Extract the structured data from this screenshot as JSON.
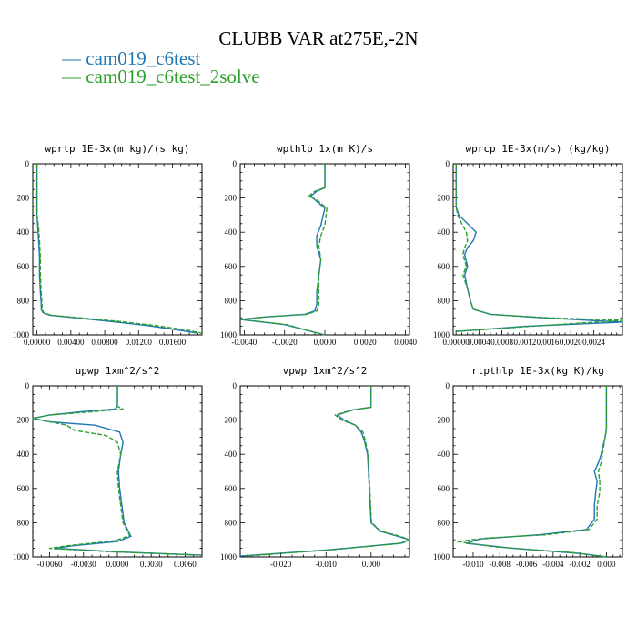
{
  "figure": {
    "title": "CLUBB VAR at275E,-2N",
    "legend": [
      {
        "label": "cam019_c6test",
        "color": "#1f77b4"
      },
      {
        "label": "cam019_c6test_2solve",
        "color": "#2ca02c"
      }
    ]
  },
  "chart_data": [
    {
      "type": "line",
      "title": "wprtp  1E-3x(m kg)/(s kg)",
      "xlim": [
        -0.0005,
        0.0195
      ],
      "ylim": [
        1000,
        0
      ],
      "xticks": [
        0,
        0.004,
        0.008,
        0.012,
        0.016
      ],
      "xtick_labels": [
        "0.00000",
        "0.00400",
        "0.00800",
        "0.01200",
        "0.01600"
      ],
      "yticks": [
        0,
        200,
        400,
        600,
        800,
        1000
      ],
      "series": [
        {
          "name": "cam019_c6test",
          "color": "#1f77b4",
          "dash": "solid",
          "x": [
            0,
            0,
            0,
            0.0001,
            0.0002,
            0.0003,
            0.0003,
            0.0004,
            0.0005,
            0.0005,
            0.0007,
            0.0015,
            0.0045,
            0.0085,
            0.013,
            0.0165,
            0.019
          ],
          "y": [
            0,
            100,
            300,
            380,
            450,
            550,
            650,
            750,
            820,
            850,
            870,
            885,
            900,
            920,
            945,
            970,
            990
          ]
        },
        {
          "name": "cam019_c6test_2solve",
          "color": "#2ca02c",
          "dash": "dashed",
          "x": [
            0,
            0,
            0,
            0.0002,
            0.0003,
            0.0004,
            0.0004,
            0.0005,
            0.0006,
            0.0006,
            0.0008,
            0.0017,
            0.005,
            0.0095,
            0.014,
            0.0175,
            0.0195
          ],
          "y": [
            0,
            100,
            300,
            380,
            450,
            550,
            650,
            750,
            820,
            850,
            870,
            885,
            900,
            920,
            945,
            970,
            990
          ]
        }
      ]
    },
    {
      "type": "line",
      "title": "wpthlp  1x(m K)/s",
      "xlim": [
        -0.0042,
        0.0042
      ],
      "ylim": [
        1000,
        0
      ],
      "xticks": [
        -0.004,
        -0.002,
        0,
        0.002,
        0.004
      ],
      "xtick_labels": [
        "-0.0040",
        "-0.0020",
        "0.0000",
        "0.0020",
        "0.0040"
      ],
      "yticks": [
        0,
        200,
        400,
        600,
        800,
        1000
      ],
      "series": [
        {
          "name": "cam019_c6test",
          "color": "#1f77b4",
          "dash": "solid",
          "x": [
            0,
            0,
            -0.0004,
            -0.0007,
            -0.0005,
            0,
            -0.0002,
            -0.0004,
            -0.0004,
            -0.0002,
            -0.0003,
            -0.0004,
            -0.0004,
            -0.0005,
            -0.001,
            -0.003,
            -0.0042,
            -0.002,
            0
          ],
          "y": [
            0,
            140,
            160,
            190,
            210,
            260,
            360,
            420,
            480,
            560,
            650,
            750,
            820,
            860,
            880,
            895,
            910,
            940,
            1000
          ]
        },
        {
          "name": "cam019_c6test_2solve",
          "color": "#2ca02c",
          "dash": "dashed",
          "x": [
            0,
            0,
            -0.0005,
            -0.0008,
            -0.0004,
            0.0001,
            0,
            -0.0002,
            -0.0003,
            -0.0002,
            -0.0003,
            -0.0003,
            -0.0003,
            -0.0004,
            -0.0009,
            -0.0029,
            -0.0041,
            -0.0019,
            0
          ],
          "y": [
            0,
            140,
            160,
            190,
            210,
            260,
            360,
            420,
            480,
            560,
            650,
            750,
            820,
            860,
            880,
            895,
            910,
            940,
            1000
          ]
        }
      ]
    },
    {
      "type": "line",
      "title": "wprcp  1E-3x(m/s) (kg/kg)",
      "xlim": [
        -5e-05,
        0.0029
      ],
      "ylim": [
        1000,
        0
      ],
      "xticks": [
        0,
        0.0004,
        0.0008,
        0.0012,
        0.0016,
        0.002,
        0.0024
      ],
      "xtick_labels": [
        "0.00000",
        "0.0004",
        "0.0008",
        "0.0012",
        "0.0016",
        "0.0020",
        "0.0024"
      ],
      "yticks": [
        0,
        200,
        400,
        600,
        800,
        1000
      ],
      "series": [
        {
          "name": "cam019_c6test",
          "color": "#1f77b4",
          "dash": "solid",
          "x": [
            0,
            0,
            5e-05,
            0.0002,
            0.00035,
            0.0003,
            0.0002,
            0.00015,
            0.0002,
            0.00015,
            0.0002,
            0.00025,
            0.0003,
            0.0006,
            0.0015,
            0.0029,
            0.0012,
            0
          ],
          "y": [
            0,
            250,
            300,
            350,
            400,
            450,
            490,
            530,
            600,
            650,
            730,
            800,
            850,
            880,
            900,
            925,
            950,
            980
          ]
        },
        {
          "name": "cam019_c6test_2solve",
          "color": "#2ca02c",
          "dash": "dashed",
          "x": [
            0,
            0,
            3e-05,
            0.0001,
            0.00018,
            0.0002,
            0.00015,
            0.00012,
            0.00018,
            0.00012,
            0.0002,
            0.00025,
            0.0003,
            0.0006,
            0.0016,
            0.0029,
            0.0013,
            0
          ],
          "y": [
            0,
            250,
            300,
            350,
            400,
            450,
            490,
            530,
            600,
            650,
            730,
            800,
            850,
            880,
            900,
            915,
            950,
            980
          ]
        }
      ]
    },
    {
      "type": "line",
      "title": "upwp  1xm^2/s^2",
      "xlim": [
        -0.0075,
        0.0075
      ],
      "ylim": [
        1000,
        0
      ],
      "xticks": [
        -0.006,
        -0.003,
        0,
        0.003,
        0.006
      ],
      "xtick_labels": [
        "-0.0060",
        "-0.0030",
        "0.0000",
        "0.0030",
        "0.0060"
      ],
      "yticks": [
        0,
        200,
        400,
        600,
        800,
        1000
      ],
      "series": [
        {
          "name": "cam019_c6test",
          "color": "#1f77b4",
          "dash": "solid",
          "x": [
            0,
            0,
            -0.0002,
            -0.003,
            -0.006,
            -0.0075,
            -0.006,
            -0.002,
            0.0002,
            0.0005,
            0.0003,
            0.0001,
            0.0002,
            0.0004,
            0.0006,
            0.0012,
            0,
            -0.004,
            -0.0055,
            0,
            0.0075
          ],
          "y": [
            0,
            120,
            135,
            150,
            170,
            190,
            210,
            230,
            270,
            330,
            400,
            500,
            600,
            700,
            800,
            880,
            910,
            935,
            950,
            970,
            990
          ]
        },
        {
          "name": "cam019_c6test_2solve",
          "color": "#2ca02c",
          "dash": "dashed",
          "x": [
            0,
            0,
            0.0005,
            -0.002,
            -0.006,
            -0.0075,
            -0.0045,
            -0.0038,
            -0.001,
            0,
            0.0003,
            0,
            0.0001,
            0.0003,
            0.0005,
            0.0011,
            -0.0002,
            -0.0045,
            -0.006,
            -0.0005,
            0.0075
          ],
          "y": [
            0,
            120,
            135,
            150,
            170,
            190,
            230,
            260,
            290,
            330,
            400,
            500,
            600,
            700,
            800,
            875,
            905,
            935,
            950,
            970,
            990
          ]
        }
      ]
    },
    {
      "type": "line",
      "title": "vpwp  1xm^2/s^2",
      "xlim": [
        -0.029,
        0.0085
      ],
      "ylim": [
        1000,
        0
      ],
      "xticks": [
        -0.02,
        -0.01,
        0
      ],
      "xtick_labels": [
        "-0.020",
        "-0.010",
        "0.000"
      ],
      "yticks": [
        0,
        200,
        400,
        600,
        800,
        1000
      ],
      "series": [
        {
          "name": "cam019_c6test",
          "color": "#1f77b4",
          "dash": "solid",
          "x": [
            0,
            0,
            -0.004,
            -0.0075,
            -0.006,
            -0.0035,
            -0.0022,
            -0.0015,
            -0.0008,
            -0.0006,
            -0.0004,
            -0.0002,
            0,
            0.002,
            0.006,
            0.0085,
            0.0065,
            -0.01,
            -0.029
          ],
          "y": [
            0,
            125,
            140,
            170,
            200,
            230,
            270,
            320,
            400,
            500,
            600,
            700,
            800,
            850,
            880,
            900,
            920,
            960,
            995
          ]
        },
        {
          "name": "cam019_c6test_2solve",
          "color": "#2ca02c",
          "dash": "dashed",
          "x": [
            0,
            0,
            -0.004,
            -0.008,
            -0.0065,
            -0.0035,
            -0.0018,
            -0.0013,
            -0.0007,
            -0.0005,
            -0.0003,
            -0.0001,
            0.0001,
            0.0022,
            0.0065,
            0.0085,
            0.0068,
            -0.0095,
            -0.028
          ],
          "y": [
            0,
            125,
            140,
            170,
            200,
            230,
            270,
            320,
            400,
            500,
            600,
            700,
            800,
            850,
            880,
            900,
            920,
            960,
            995
          ]
        }
      ]
    },
    {
      "type": "line",
      "title": "rtpthlp  1E-3x(kg K)/kg",
      "xlim": [
        -0.0115,
        0.0012
      ],
      "ylim": [
        1000,
        0
      ],
      "xticks": [
        -0.01,
        -0.008,
        -0.006,
        -0.004,
        -0.002,
        0
      ],
      "xtick_labels": [
        "-0.010",
        "-0.008",
        "-0.006",
        "-0.004",
        "-0.002",
        "0.000"
      ],
      "yticks": [
        0,
        200,
        400,
        600,
        800,
        1000
      ],
      "series": [
        {
          "name": "cam019_c6test",
          "color": "#1f77b4",
          "dash": "solid",
          "x": [
            0,
            0,
            -0.0001,
            -0.0004,
            -0.0006,
            -0.0009,
            -0.0007,
            -0.0008,
            -0.0009,
            -0.0009,
            -0.0015,
            -0.005,
            -0.0095,
            -0.0105,
            -0.007,
            -0.002,
            0
          ],
          "y": [
            0,
            250,
            300,
            400,
            450,
            500,
            560,
            620,
            700,
            780,
            840,
            870,
            895,
            920,
            950,
            980,
            1000
          ]
        },
        {
          "name": "cam019_c6test_2solve",
          "color": "#2ca02c",
          "dash": "dashed",
          "x": [
            0,
            0,
            -0.0001,
            -0.0003,
            -0.0004,
            -0.0006,
            -0.0005,
            -0.0005,
            -0.0007,
            -0.0007,
            -0.0013,
            -0.0045,
            -0.009,
            -0.0112,
            -0.0085,
            -0.0025,
            0
          ],
          "y": [
            0,
            250,
            300,
            400,
            450,
            500,
            560,
            620,
            700,
            780,
            840,
            870,
            890,
            910,
            940,
            975,
            1000
          ]
        }
      ]
    }
  ]
}
